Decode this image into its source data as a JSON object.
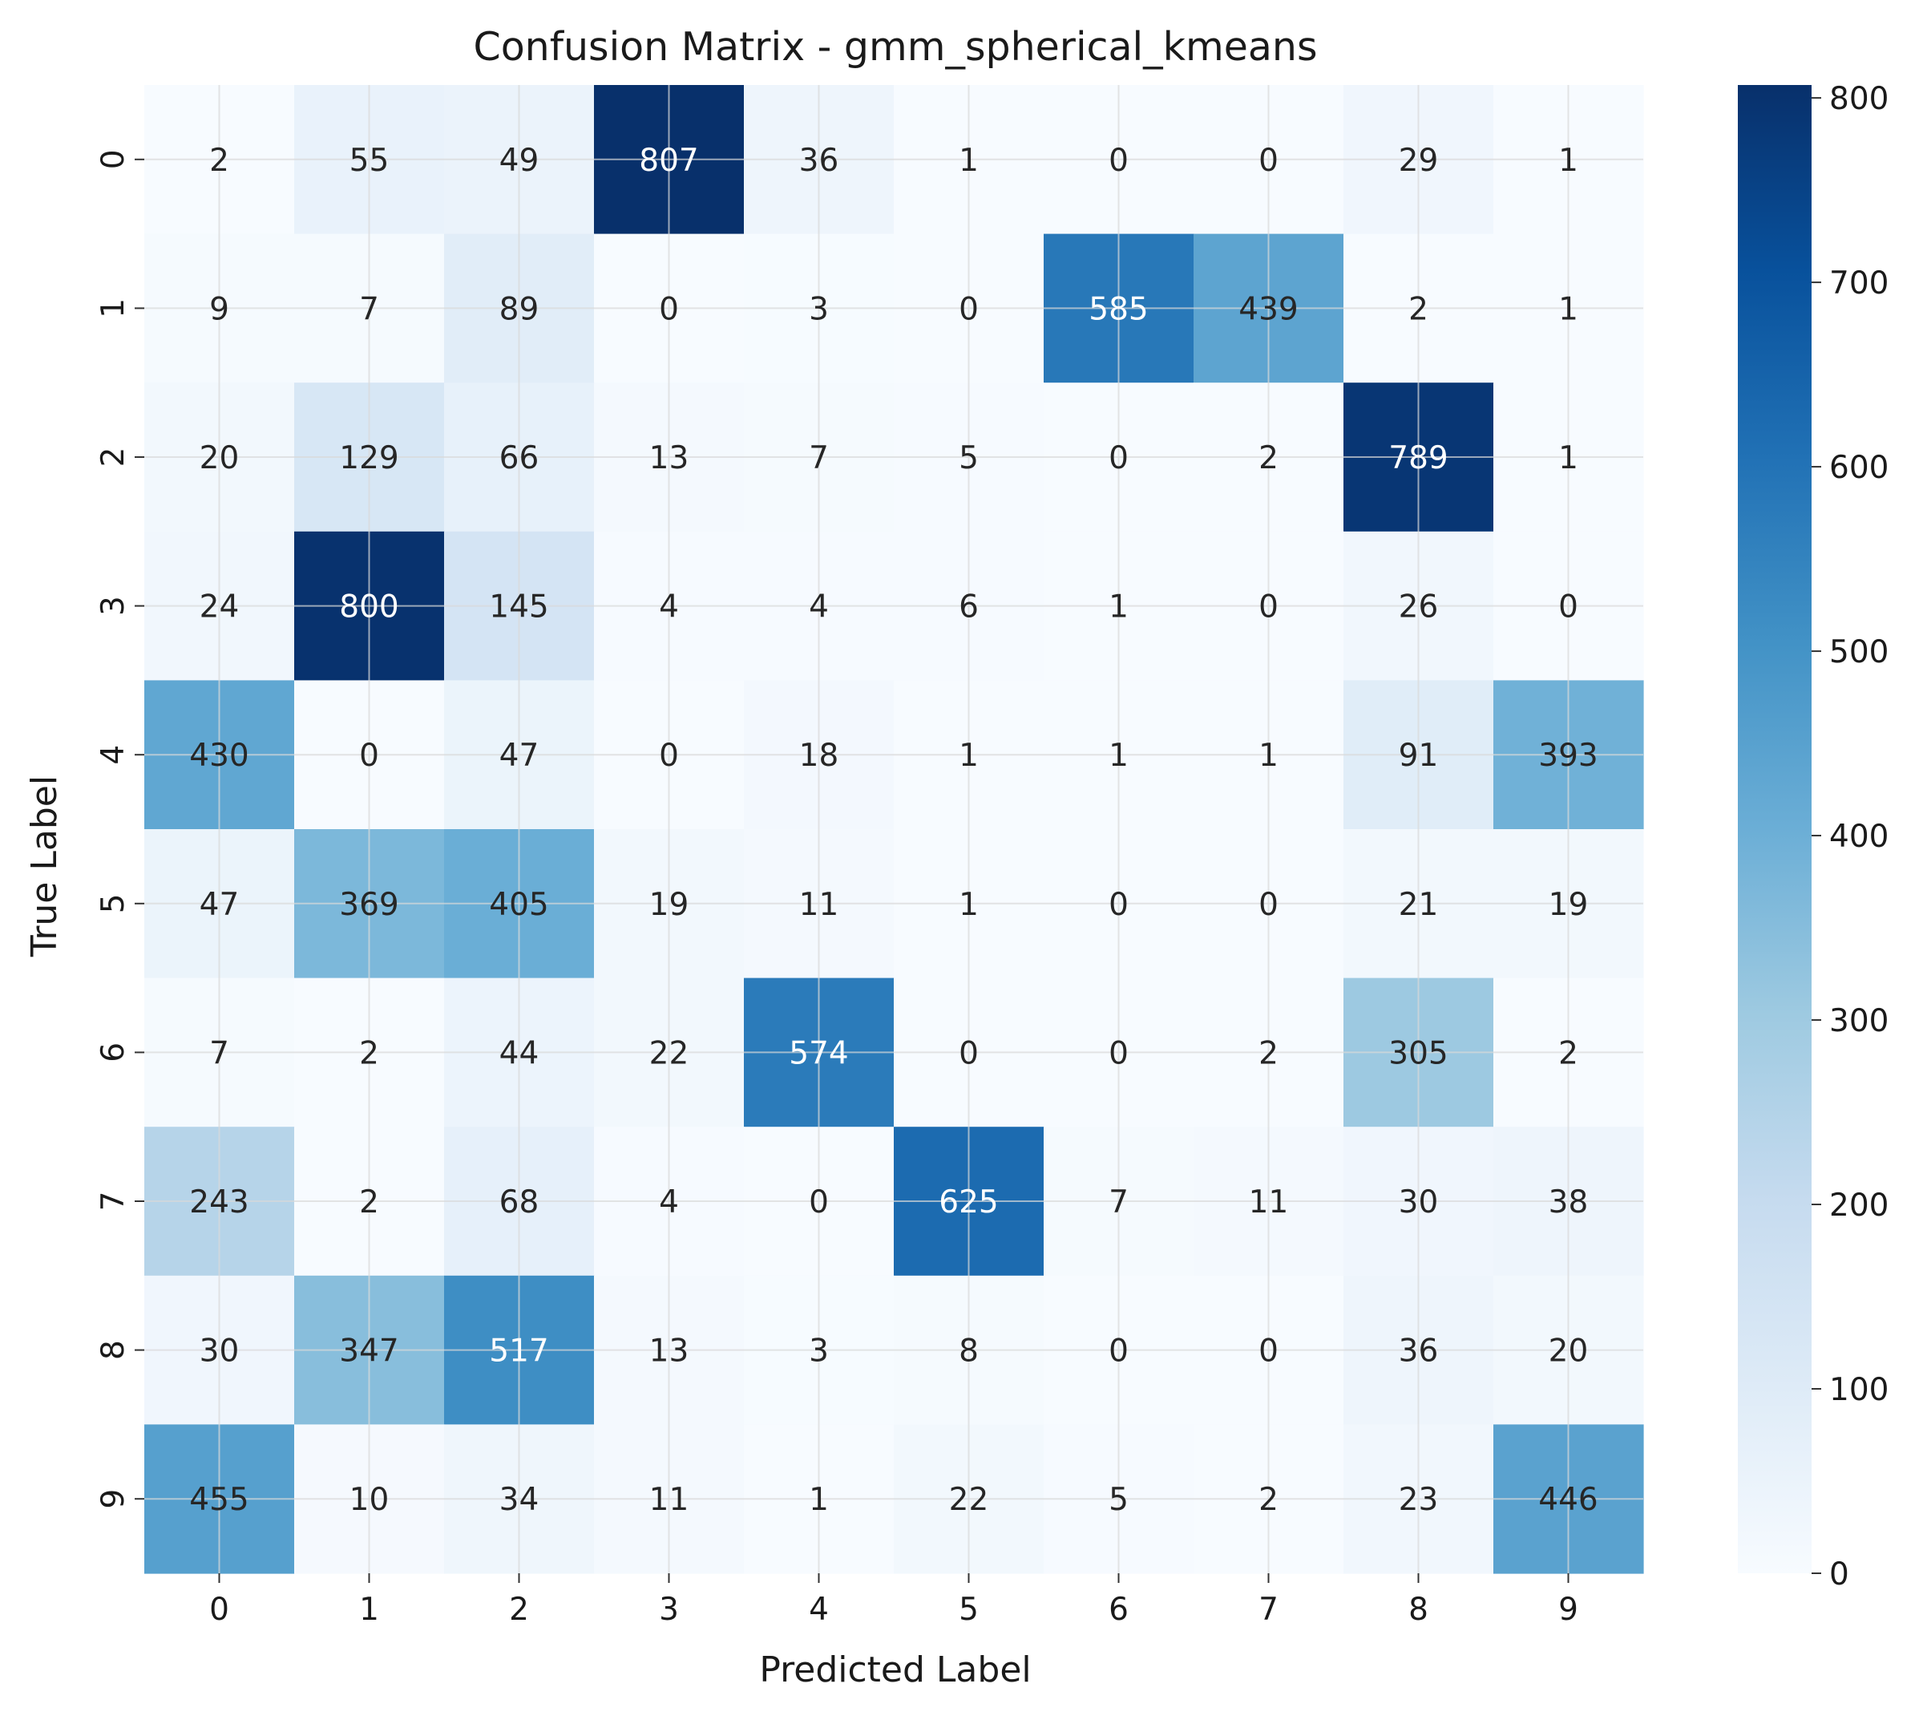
{
  "chart_data": {
    "type": "heatmap",
    "title": "Confusion Matrix - gmm_spherical_kmeans",
    "xlabel": "Predicted Label",
    "ylabel": "True Label",
    "x_categories": [
      "0",
      "1",
      "2",
      "3",
      "4",
      "5",
      "6",
      "7",
      "8",
      "9"
    ],
    "y_categories": [
      "0",
      "1",
      "2",
      "3",
      "4",
      "5",
      "6",
      "7",
      "8",
      "9"
    ],
    "values": [
      [
        2,
        55,
        49,
        807,
        36,
        1,
        0,
        0,
        29,
        1
      ],
      [
        9,
        7,
        89,
        0,
        3,
        0,
        585,
        439,
        2,
        1
      ],
      [
        20,
        129,
        66,
        13,
        7,
        5,
        0,
        2,
        789,
        1
      ],
      [
        24,
        800,
        145,
        4,
        4,
        6,
        1,
        0,
        26,
        0
      ],
      [
        430,
        0,
        47,
        0,
        18,
        1,
        1,
        1,
        91,
        393
      ],
      [
        47,
        369,
        405,
        19,
        11,
        1,
        0,
        0,
        21,
        19
      ],
      [
        7,
        2,
        44,
        22,
        574,
        0,
        0,
        2,
        305,
        2
      ],
      [
        243,
        2,
        68,
        4,
        0,
        625,
        7,
        11,
        30,
        38
      ],
      [
        30,
        347,
        517,
        13,
        3,
        8,
        0,
        0,
        36,
        20
      ],
      [
        455,
        10,
        34,
        11,
        1,
        22,
        5,
        2,
        23,
        446
      ]
    ],
    "colormap": "Blues",
    "colorbar": {
      "vmin": 0,
      "vmax": 807,
      "ticks": [
        0,
        100,
        200,
        300,
        400,
        500,
        600,
        700,
        800
      ]
    },
    "grid": true,
    "cell_text_colors": {
      "dark": "#262626",
      "light": "#ffffff"
    }
  }
}
